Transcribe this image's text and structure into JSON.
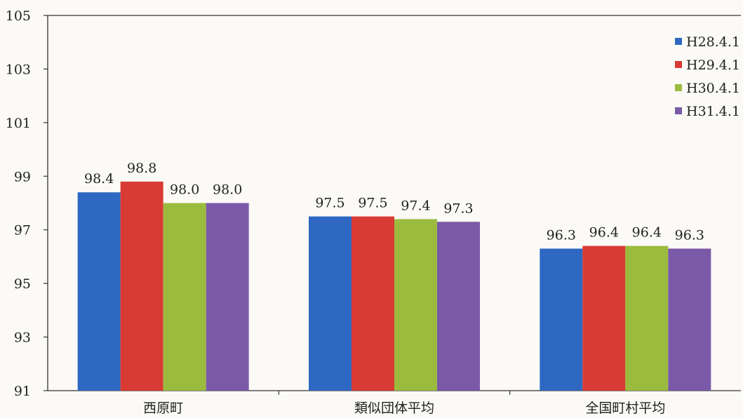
{
  "chart_data": {
    "type": "bar",
    "title": "",
    "xlabel": "",
    "ylabel": "",
    "categories": [
      "西原町",
      "類似団体平均",
      "全国町村平均"
    ],
    "series": [
      {
        "name": "H28.4.1",
        "color": "#2f68c3",
        "values": [
          98.4,
          97.5,
          96.3
        ]
      },
      {
        "name": "H29.4.1",
        "color": "#d83b33",
        "values": [
          98.8,
          97.5,
          96.4
        ]
      },
      {
        "name": "H30.4.1",
        "color": "#9bbb3f",
        "values": [
          98.0,
          97.4,
          96.4
        ]
      },
      {
        "name": "H31.4.1",
        "color": "#7a5aa8",
        "values": [
          98.0,
          97.3,
          96.3
        ]
      }
    ],
    "ylim": [
      91,
      105
    ],
    "yticks": [
      91,
      93,
      95,
      97,
      99,
      101,
      103,
      105
    ],
    "ytick_labels": [
      "91",
      "93",
      "95",
      "97",
      "99",
      "101",
      "103",
      "105"
    ],
    "data_labels": [
      [
        "98.4",
        "97.5",
        "96.3"
      ],
      [
        "98.8",
        "97.5",
        "96.4"
      ],
      [
        "98.0",
        "97.4",
        "96.4"
      ],
      [
        "98.0",
        "97.3",
        "96.3"
      ]
    ],
    "grid": false,
    "legend_position": "top-right"
  }
}
